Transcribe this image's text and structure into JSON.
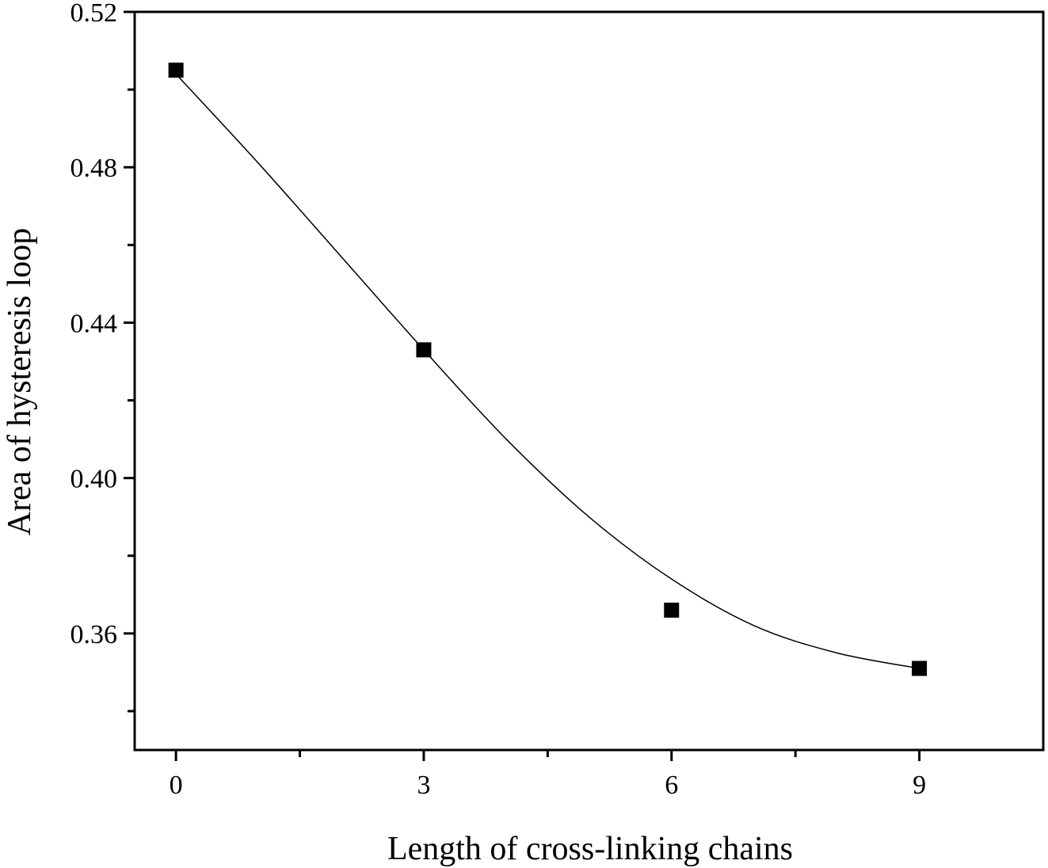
{
  "chart_data": {
    "type": "scatter",
    "title": "",
    "xlabel": "Length of cross-linking chains",
    "ylabel": "Area of hysteresis loop",
    "xlim": [
      -0.5,
      10.5
    ],
    "ylim": [
      0.33,
      0.52
    ],
    "x_ticks_major": [
      0,
      3,
      6,
      9
    ],
    "x_ticks_minor": [
      1.5,
      4.5,
      7.5
    ],
    "x_tick_labels": [
      "0",
      "3",
      "6",
      "9"
    ],
    "y_ticks_major": [
      0.36,
      0.4,
      0.44,
      0.48,
      0.52
    ],
    "y_ticks_minor": [
      0.34,
      0.38,
      0.42,
      0.46,
      0.5
    ],
    "y_tick_labels": [
      "0.36",
      "0.40",
      "0.44",
      "0.48",
      "0.52"
    ],
    "series": [
      {
        "marker": "square",
        "color": "#000000",
        "x": [
          0,
          3,
          6,
          9
        ],
        "y": [
          0.505,
          0.433,
          0.366,
          0.351
        ]
      }
    ],
    "fit_curve": {
      "style": "smooth spline",
      "color": "#000000",
      "x": [
        0,
        1,
        2,
        3,
        4,
        5,
        6,
        7,
        8,
        9
      ],
      "y": [
        0.504,
        0.481,
        0.457,
        0.433,
        0.41,
        0.39,
        0.374,
        0.362,
        0.355,
        0.351
      ]
    },
    "grid": false,
    "legend": "none"
  }
}
